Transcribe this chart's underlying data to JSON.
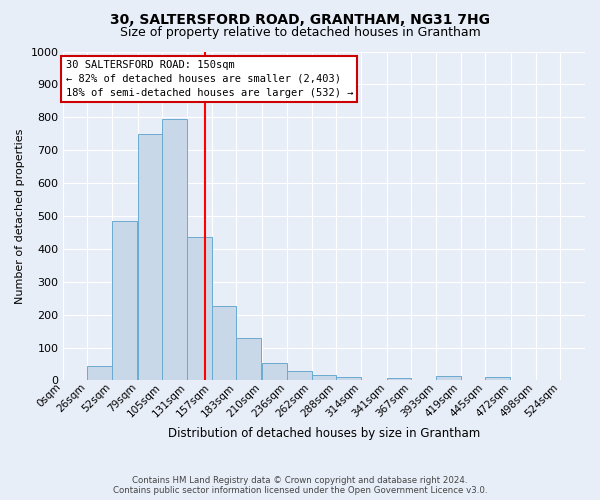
{
  "title": "30, SALTERSFORD ROAD, GRANTHAM, NG31 7HG",
  "subtitle": "Size of property relative to detached houses in Grantham",
  "xlabel": "Distribution of detached houses by size in Grantham",
  "ylabel": "Number of detached properties",
  "bar_color": "#c8d8e8",
  "bar_edge_color": "#6aaad0",
  "background_color": "#e8eef8",
  "grid_color": "#ffffff",
  "bin_labels": [
    "0sqm",
    "26sqm",
    "52sqm",
    "79sqm",
    "105sqm",
    "131sqm",
    "157sqm",
    "183sqm",
    "210sqm",
    "236sqm",
    "262sqm",
    "288sqm",
    "314sqm",
    "341sqm",
    "367sqm",
    "393sqm",
    "419sqm",
    "445sqm",
    "472sqm",
    "498sqm",
    "524sqm"
  ],
  "bin_edges": [
    0,
    26,
    52,
    79,
    105,
    131,
    157,
    183,
    210,
    236,
    262,
    288,
    314,
    341,
    367,
    393,
    419,
    445,
    472,
    498,
    524
  ],
  "bar_heights": [
    0,
    45,
    485,
    750,
    795,
    435,
    225,
    130,
    52,
    30,
    17,
    10,
    0,
    8,
    0,
    12,
    0,
    10,
    0,
    0,
    0
  ],
  "red_line_x": 150,
  "ylim": [
    0,
    1000
  ],
  "yticks": [
    0,
    100,
    200,
    300,
    400,
    500,
    600,
    700,
    800,
    900,
    1000
  ],
  "annotation_title": "30 SALTERSFORD ROAD: 150sqm",
  "annotation_line2": "← 82% of detached houses are smaller (2,403)",
  "annotation_line3": "18% of semi-detached houses are larger (532) →",
  "annotation_box_color": "#ffffff",
  "annotation_box_edge": "#cc0000",
  "footer_line1": "Contains HM Land Registry data © Crown copyright and database right 2024.",
  "footer_line2": "Contains public sector information licensed under the Open Government Licence v3.0.",
  "title_fontsize": 10,
  "subtitle_fontsize": 9
}
